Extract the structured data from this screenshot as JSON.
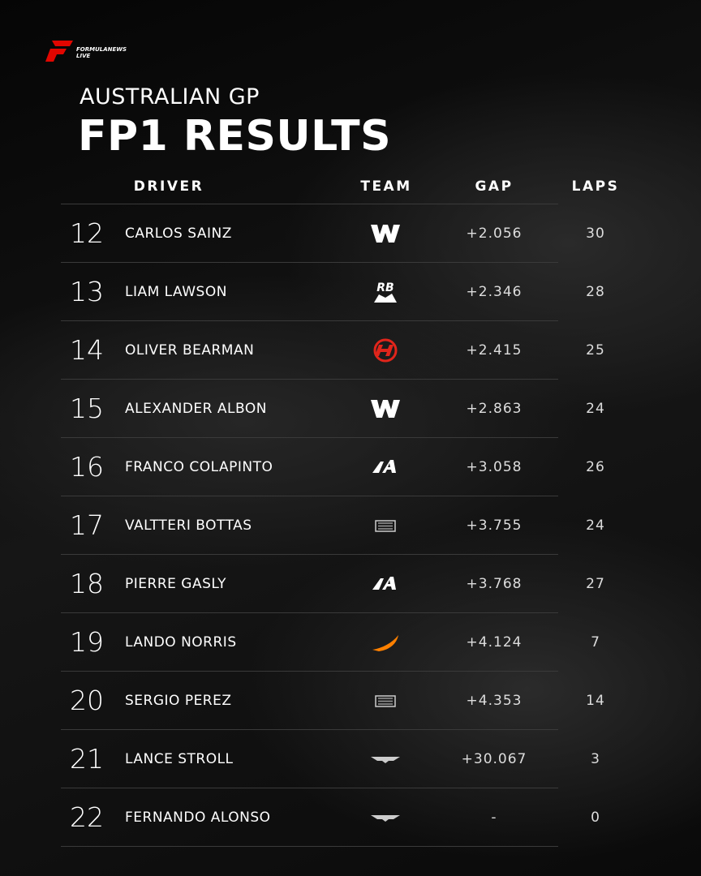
{
  "header": {
    "brand": "FORMULANEWS",
    "brand_sub": "LIVE",
    "subtitle": "AUSTRALIAN GP",
    "title": "FP1 RESULTS"
  },
  "table": {
    "columns": [
      "DRIVER",
      "TEAM",
      "GAP",
      "LAPS"
    ],
    "rows": [
      [
        "12",
        "CARLOS SAINZ",
        "+2.056",
        "30"
      ],
      [
        "13",
        "LIAM LAWSON",
        "+2.346",
        "28"
      ],
      [
        "14",
        "OLIVER BEARMAN",
        "+2.415",
        "25"
      ],
      [
        "15",
        "ALEXANDER ALBON",
        "+2.863",
        "24"
      ],
      [
        "16",
        "FRANCO COLAPINTO",
        "+3.058",
        "26"
      ],
      [
        "17",
        "VALTTERI BOTTAS",
        "+3.755",
        "24"
      ],
      [
        "18",
        "PIERRE GASLY",
        "+3.768",
        "27"
      ],
      [
        "19",
        "LANDO NORRIS",
        "+4.124",
        "7"
      ],
      [
        "20",
        "SERGIO PEREZ",
        "+4.353",
        "14"
      ],
      [
        "21",
        "LANCE STROLL",
        "+30.067",
        "3"
      ],
      [
        "22",
        "FERNANDO ALONSO",
        "-",
        "0"
      ]
    ]
  }
}
